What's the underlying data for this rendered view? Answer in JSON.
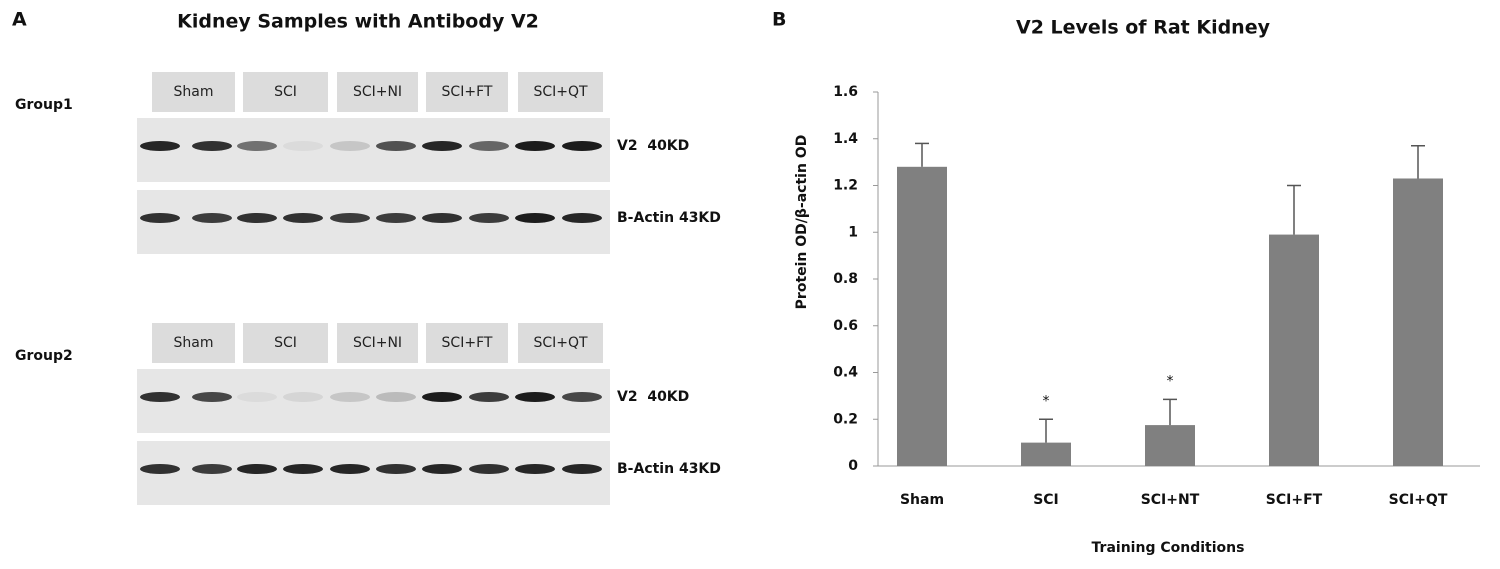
{
  "panel_a": {
    "label": "A",
    "title": "Kidney Samples with Antibody V2",
    "groups": [
      {
        "name": "Group1",
        "lanes": [
          "Sham",
          "SCI",
          "SCI+NI",
          "SCI+FT",
          "SCI+QT"
        ],
        "bands": [
          "V2  40KD",
          "B-Actin 43KD"
        ]
      },
      {
        "name": "Group2",
        "lanes": [
          "Sham",
          "SCI",
          "SCI+NI",
          "SCI+FT",
          "SCI+QT"
        ],
        "bands": [
          "V2  40KD",
          "B-Actin 43KD"
        ]
      }
    ]
  },
  "chart_data": {
    "type": "bar",
    "panel_label": "B",
    "title": "V2 Levels of Rat Kidney",
    "x_label": "Training Conditions",
    "y_label": "Protein OD/β-actin OD",
    "categories": [
      "Sham",
      "SCI",
      "SCI+NT",
      "SCI+FT",
      "SCI+QT"
    ],
    "values": [
      1.28,
      0.1,
      0.175,
      0.99,
      1.23
    ],
    "errors": [
      0.1,
      0.1,
      0.11,
      0.21,
      0.14
    ],
    "annotations": [
      null,
      "*",
      "*",
      null,
      null
    ],
    "color": "#808080",
    "ylim": [
      0,
      1.6
    ],
    "yticks": [
      0,
      0.2,
      0.4,
      0.6,
      0.8,
      1,
      1.2,
      1.4,
      1.6
    ],
    "grid": false
  }
}
